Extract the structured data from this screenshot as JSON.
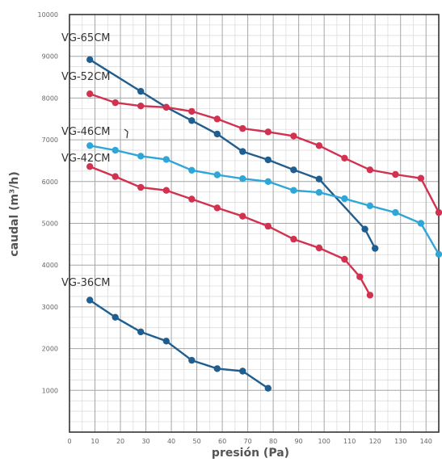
{
  "chart_data": {
    "type": "line",
    "xlabel": "presión (Pa)",
    "ylabel": "caudal (m³/h)",
    "xlim": [
      0,
      145
    ],
    "ylim": [
      0,
      10000
    ],
    "grid": true,
    "x_ticks": [
      "0",
      "10",
      "20",
      "30",
      "40",
      "50",
      "60",
      "70",
      "80",
      "90",
      "100",
      "110",
      "120",
      "130",
      "140"
    ],
    "y_ticks": [
      "1000",
      "2000",
      "3000",
      "4000",
      "5000",
      "6000",
      "7000",
      "8000",
      "9000",
      "10000"
    ],
    "series": [
      {
        "name": "VG-65CM",
        "color": "#1f5e8e",
        "points": [
          [
            8,
            8920
          ],
          [
            28,
            8160
          ],
          [
            38,
            7780
          ],
          [
            48,
            7460
          ],
          [
            58,
            7140
          ],
          [
            68,
            6720
          ],
          [
            78,
            6520
          ],
          [
            88,
            6280
          ],
          [
            98,
            6060
          ],
          [
            116,
            4860
          ],
          [
            120,
            4400
          ]
        ]
      },
      {
        "name": "VG-52CM",
        "color": "#d2314f",
        "points": [
          [
            8,
            8100
          ],
          [
            18,
            7890
          ],
          [
            28,
            7810
          ],
          [
            38,
            7780
          ],
          [
            48,
            7680
          ],
          [
            58,
            7500
          ],
          [
            68,
            7270
          ],
          [
            78,
            7190
          ],
          [
            88,
            7090
          ],
          [
            98,
            6860
          ],
          [
            108,
            6560
          ],
          [
            118,
            6280
          ],
          [
            128,
            6170
          ],
          [
            138,
            6080
          ],
          [
            145,
            5260
          ]
        ]
      },
      {
        "name": "VG-46CM",
        "color": "#2ea7d8",
        "points": [
          [
            8,
            6860
          ],
          [
            18,
            6750
          ],
          [
            28,
            6610
          ],
          [
            38,
            6530
          ],
          [
            48,
            6270
          ],
          [
            58,
            6160
          ],
          [
            68,
            6070
          ],
          [
            78,
            6000
          ],
          [
            88,
            5790
          ],
          [
            98,
            5740
          ],
          [
            108,
            5590
          ],
          [
            118,
            5420
          ],
          [
            128,
            5260
          ],
          [
            138,
            5000
          ],
          [
            145,
            4260
          ]
        ]
      },
      {
        "name": "VG-42CM",
        "color": "#d2314f",
        "points": [
          [
            8,
            6360
          ],
          [
            18,
            6120
          ],
          [
            28,
            5860
          ],
          [
            38,
            5790
          ],
          [
            48,
            5580
          ],
          [
            58,
            5370
          ],
          [
            68,
            5170
          ],
          [
            78,
            4930
          ],
          [
            88,
            4620
          ],
          [
            98,
            4410
          ],
          [
            108,
            4140
          ],
          [
            114,
            3720
          ],
          [
            118,
            3280
          ]
        ]
      },
      {
        "name": "VG-36CM",
        "color": "#1f5e8e",
        "points": [
          [
            8,
            3160
          ],
          [
            18,
            2750
          ],
          [
            28,
            2400
          ],
          [
            38,
            2180
          ],
          [
            48,
            1720
          ],
          [
            58,
            1520
          ],
          [
            68,
            1460
          ],
          [
            78,
            1050
          ]
        ]
      }
    ],
    "series_labels": [
      {
        "text": "VG-65CM",
        "series": 0
      },
      {
        "text": "VG-52CM",
        "series": 1
      },
      {
        "text": "VG-46CM",
        "series": 2
      },
      {
        "text": "VG-42CM",
        "series": 3
      },
      {
        "text": "VG-36CM",
        "series": 4
      }
    ]
  }
}
